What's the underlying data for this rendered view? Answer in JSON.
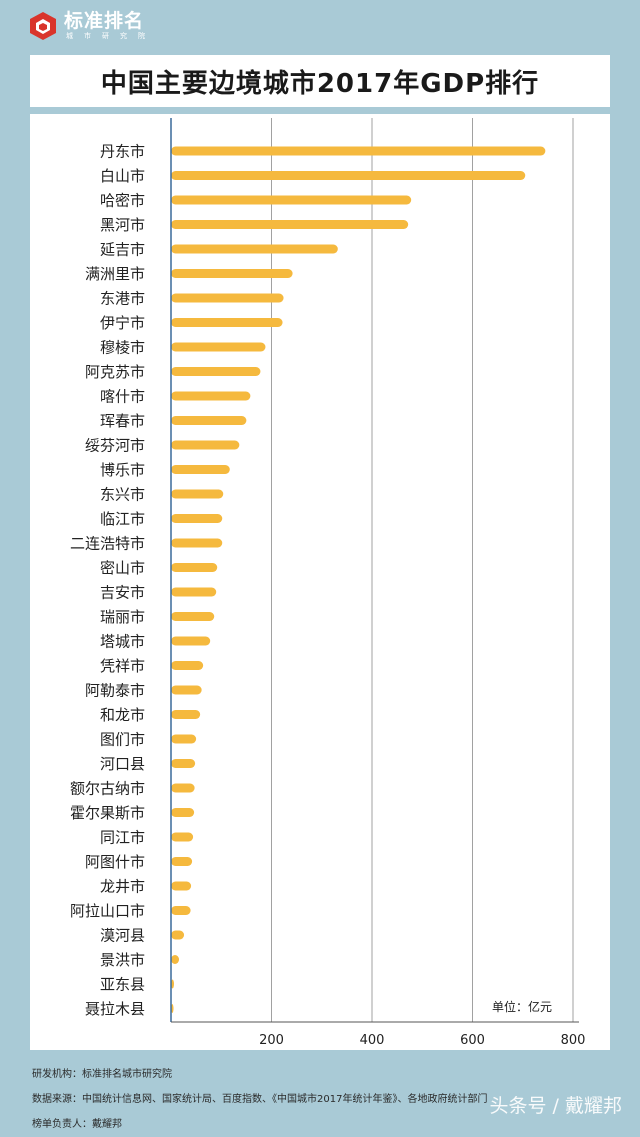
{
  "brand": {
    "name": "标准排名",
    "sub": "城市研究院"
  },
  "chart_data": {
    "type": "bar",
    "orientation": "horizontal",
    "title": "中国主要边境城市2017年GDP排行",
    "unit_label": "单位：亿元",
    "xlim": [
      0,
      800
    ],
    "xticks": [
      200,
      400,
      600,
      800
    ],
    "grid": true,
    "categories": [
      "丹东市",
      "白山市",
      "哈密市",
      "黑河市",
      "延吉市",
      "满洲里市",
      "东港市",
      "伊宁市",
      "穆棱市",
      "阿克苏市",
      "喀什市",
      "珲春市",
      "绥芬河市",
      "博乐市",
      "东兴市",
      "临江市",
      "二连浩特市",
      "密山市",
      "吉安市",
      "瑞丽市",
      "塔城市",
      "凭祥市",
      "阿勒泰市",
      "和龙市",
      "图们市",
      "河口县",
      "额尔古纳市",
      "霍尔果斯市",
      "同江市",
      "阿图什市",
      "龙井市",
      "阿拉山口市",
      "漠河县",
      "景洪市",
      "亚东县",
      "聂拉木县"
    ],
    "values": [
      745,
      705,
      478,
      472,
      332,
      242,
      224,
      222,
      188,
      178,
      158,
      150,
      136,
      117,
      104,
      102,
      102,
      92,
      90,
      86,
      78,
      64,
      61,
      58,
      50,
      48,
      47,
      46,
      44,
      42,
      40,
      39,
      26,
      16,
      6,
      5
    ],
    "bar_color": "#f5b93e"
  },
  "footer": {
    "institution": "研发机构：标准排名城市研究院",
    "source": "数据来源：中国统计信息网、国家统计局、百度指数、《中国城市2017年统计年鉴》、各地政府统计部门",
    "responsible": "榜单负责人：戴耀邦"
  },
  "corner_watermark": "头条号 / 戴耀邦"
}
